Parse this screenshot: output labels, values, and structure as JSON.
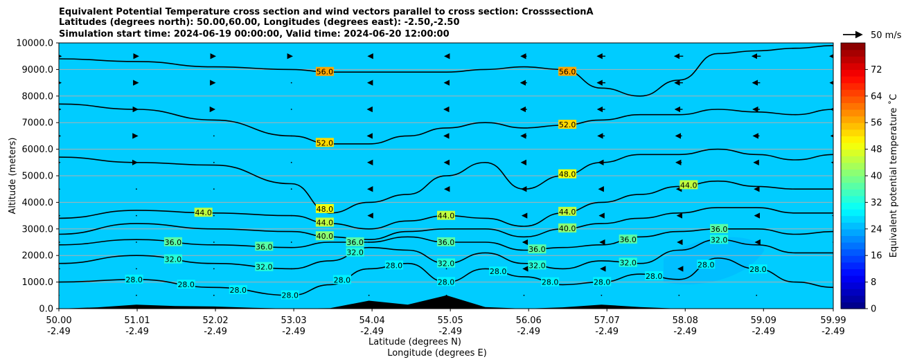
{
  "chart_data": {
    "type": "contour",
    "title_lines": [
      "Equivalent Potential Temperature cross section and wind vectors parallel to cross section: CrosssectionA",
      "Latitudes (degrees north): 50.00,60.00, Longitudes (degrees east): -2.50,-2.50",
      "Simulation start time: 2024-06-19 00:00:00, Valid time: 2024-06-20 12:00:00"
    ],
    "ylabel": "Altitude (meters)",
    "xlabel_lines": [
      "Latitude (degrees N)",
      "Longitude (degrees E)"
    ],
    "ylim": [
      0,
      10000
    ],
    "y_ticks": [
      "0.0",
      "1000.0",
      "2000.0",
      "3000.0",
      "4000.0",
      "5000.0",
      "6000.0",
      "7000.0",
      "8000.0",
      "9000.0",
      "10000.0"
    ],
    "x_ticks": [
      {
        "lat": "50.00",
        "lon": "-2.49"
      },
      {
        "lat": "51.01",
        "lon": "-2.49"
      },
      {
        "lat": "52.02",
        "lon": "-2.49"
      },
      {
        "lat": "53.03",
        "lon": "-2.49"
      },
      {
        "lat": "54.04",
        "lon": "-2.49"
      },
      {
        "lat": "55.05",
        "lon": "-2.49"
      },
      {
        "lat": "56.06",
        "lon": "-2.49"
      },
      {
        "lat": "57.07",
        "lon": "-2.49"
      },
      {
        "lat": "58.08",
        "lon": "-2.49"
      },
      {
        "lat": "59.09",
        "lon": "-2.49"
      },
      {
        "lat": "59.99",
        "lon": "-2.49"
      }
    ],
    "grid": true,
    "colorbar": {
      "label": "Equivalent potential temperature ˚C",
      "range": [
        0,
        80
      ],
      "ticks": [
        "0",
        "8",
        "16",
        "24",
        "32",
        "40",
        "48",
        "56",
        "64",
        "72"
      ]
    },
    "wind_key": {
      "label": "50 m/s",
      "speed": 50
    },
    "contour_levels": [
      "28.0",
      "32.0",
      "36.0",
      "40.0",
      "44.0",
      "48.0",
      "52.0",
      "56.0"
    ],
    "contour_labels": [
      "56.0",
      "56.0",
      "52.0",
      "52.0",
      "48.0",
      "48.0",
      "44.0",
      "44.0",
      "44.0",
      "44.0",
      "44.0",
      "40.0",
      "40.0",
      "36.0",
      "36.0",
      "36.0",
      "36.0",
      "36.0",
      "36.0",
      "36.0",
      "32.0",
      "32.0",
      "32.0",
      "32.0",
      "32.0",
      "32.0",
      "32.0",
      "28.0",
      "28.0",
      "28.0",
      "28.0",
      "28.0",
      "28.0",
      "28.0",
      "28.0",
      "28.0",
      "28.0",
      "28.0",
      "28.0",
      "28.0"
    ],
    "isotherm_heights": {
      "x_lat": [
        50.0,
        51.0,
        52.0,
        53.0,
        53.5,
        54.0,
        54.5,
        55.0,
        55.5,
        56.0,
        56.5,
        57.0,
        57.5,
        58.0,
        58.5,
        59.0,
        59.5,
        60.0
      ],
      "t28": [
        1000,
        1100,
        800,
        500,
        900,
        1500,
        1700,
        1000,
        1500,
        1200,
        900,
        1000,
        1300,
        1100,
        1900,
        1500,
        1000,
        800
      ],
      "t32": [
        1700,
        2000,
        1700,
        1500,
        1800,
        2300,
        2200,
        1700,
        2100,
        1700,
        1500,
        1800,
        1700,
        2200,
        2600,
        2400,
        2100,
        2100
      ],
      "t36": [
        2400,
        2600,
        2400,
        2300,
        2500,
        2500,
        2700,
        2500,
        2500,
        2200,
        2300,
        2400,
        2700,
        2900,
        3000,
        3000,
        2800,
        2900
      ],
      "t40": [
        2800,
        3200,
        3000,
        2900,
        2700,
        2600,
        2900,
        3000,
        3000,
        2700,
        3000,
        3200,
        3400,
        3600,
        3800,
        3800,
        3600,
        3600
      ],
      "t44": [
        3400,
        3700,
        3600,
        3500,
        3200,
        3000,
        3300,
        3500,
        3400,
        3100,
        3600,
        4000,
        4300,
        4600,
        4800,
        4600,
        4500,
        4500
      ],
      "t48": [
        5700,
        5500,
        5400,
        4700,
        3600,
        4000,
        4300,
        5000,
        5500,
        4500,
        5000,
        5500,
        5800,
        5800,
        6000,
        5800,
        5600,
        5800
      ],
      "t52": [
        7700,
        7500,
        7100,
        6500,
        6200,
        6200,
        6500,
        6800,
        7000,
        6800,
        6900,
        7100,
        7300,
        7300,
        7500,
        7400,
        7300,
        7500
      ],
      "t56": [
        9400,
        9300,
        9100,
        9000,
        8900,
        8900,
        8900,
        8900,
        9000,
        9100,
        9000,
        8300,
        8000,
        8600,
        9600,
        9700,
        9800,
        9900
      ]
    },
    "terrain_heights": {
      "x_lat": [
        50.0,
        50.5,
        51.0,
        51.5,
        52.0,
        52.5,
        53.0,
        53.5,
        54.0,
        54.5,
        55.0,
        55.5,
        56.0,
        56.5,
        57.0,
        57.5,
        58.0,
        59.0,
        60.0
      ],
      "h": [
        0,
        50,
        150,
        100,
        80,
        30,
        0,
        20,
        300,
        150,
        500,
        60,
        0,
        50,
        150,
        60,
        0,
        0,
        0
      ]
    },
    "wind_u_ms": {
      "x_lat": [
        50.0,
        51.0,
        52.0,
        53.0,
        54.0,
        55.0,
        56.0,
        57.0,
        58.0,
        59.0,
        60.0
      ],
      "z_m": [
        500,
        1500,
        2500,
        3500,
        4500,
        5500,
        6500,
        7500,
        8500,
        9500
      ],
      "u": [
        [
          1,
          0,
          1,
          0,
          1,
          1,
          0,
          0,
          -1,
          -1,
          0
        ],
        [
          2,
          0,
          1,
          1,
          0,
          -1,
          -2,
          -2,
          -2,
          -2,
          -1
        ],
        [
          2,
          1,
          1,
          0,
          -1,
          -2,
          -3,
          -4,
          -4,
          -3,
          -3
        ],
        [
          2,
          1,
          0,
          0,
          -2,
          -3,
          -5,
          -6,
          -5,
          -5,
          -4
        ],
        [
          2,
          1,
          0,
          -1,
          -3,
          -5,
          -7,
          -8,
          -7,
          -6,
          -5
        ],
        [
          3,
          2,
          1,
          -1,
          -3,
          -6,
          -8,
          -9,
          -9,
          -8,
          -7
        ],
        [
          4,
          3,
          1,
          -1,
          -4,
          -7,
          -9,
          -11,
          -10,
          -10,
          -9
        ],
        [
          5,
          4,
          2,
          0,
          -4,
          -7,
          -10,
          -12,
          -12,
          -11,
          -10
        ],
        [
          6,
          5,
          3,
          1,
          -3,
          -6,
          -10,
          -13,
          -13,
          -12,
          -12
        ],
        [
          7,
          6,
          4,
          2,
          -2,
          -5,
          -9,
          -13,
          -14,
          -14,
          -13
        ]
      ]
    }
  }
}
